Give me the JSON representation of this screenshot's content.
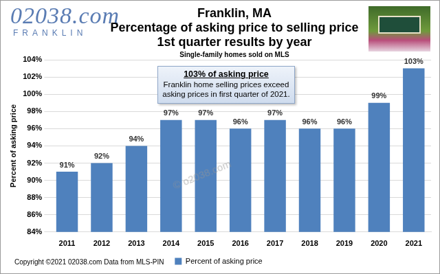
{
  "chart_data": {
    "type": "bar",
    "logo": [
      "02038.com",
      "FRANKLIN"
    ],
    "title": [
      "Franklin, MA",
      "Percentage of asking price to selling price",
      "1st quarter results by year"
    ],
    "subtitle": "Single-family homes sold on MLS",
    "annotations": [
      {
        "heading": "103% of asking price",
        "text": "Franklin home selling prices exceed asking prices in first quarter of 2021."
      }
    ],
    "watermark": "© o2038.com",
    "footer": "Copyright ©2021 02038.com Data from MLS-PIN",
    "y_label": "Percent of asking price",
    "categories": [
      "2011",
      "2012",
      "2013",
      "2014",
      "2015",
      "2016",
      "2017",
      "2018",
      "2019",
      "2020",
      "2021"
    ],
    "series": [
      {
        "name": "Percent of asking price",
        "color": "#4f81bd",
        "values": [
          91,
          92,
          94,
          97,
          97,
          96,
          97,
          96,
          96,
          99,
          103
        ],
        "value_labels": [
          "91%",
          "92%",
          "94%",
          "97%",
          "97%",
          "96%",
          "97%",
          "96%",
          "96%",
          "99%",
          "103%"
        ]
      }
    ],
    "ylim": [
      84,
      104
    ],
    "yticks": [
      {
        "value": 84,
        "label": "84%"
      },
      {
        "value": 86,
        "label": "86%"
      },
      {
        "value": 88,
        "label": "88%"
      },
      {
        "value": 90,
        "label": "90%"
      },
      {
        "value": 92,
        "label": "92%"
      },
      {
        "value": 94,
        "label": "94%"
      },
      {
        "value": 96,
        "label": "96%"
      },
      {
        "value": 98,
        "label": "98%"
      },
      {
        "value": 100,
        "label": "100%"
      },
      {
        "value": 102,
        "label": "102%"
      },
      {
        "value": 104,
        "label": "104%"
      }
    ],
    "grid": true,
    "legend": "bottom",
    "data_labels": true
  }
}
